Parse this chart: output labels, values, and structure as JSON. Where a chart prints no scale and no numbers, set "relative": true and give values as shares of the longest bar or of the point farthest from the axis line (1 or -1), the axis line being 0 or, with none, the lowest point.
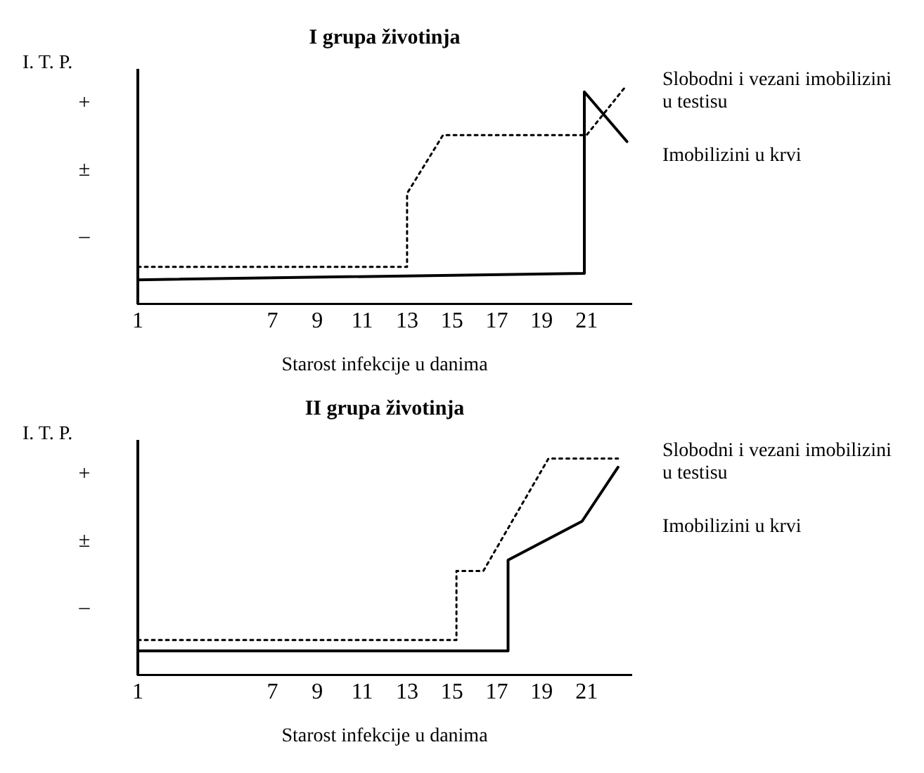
{
  "chart_data": [
    {
      "type": "line",
      "title": "I grupa životinja",
      "xlabel": "Starost infekcije u danima",
      "ylabel": "I. T. P.",
      "xlim": [
        1,
        23
      ],
      "xticks": [
        1,
        7,
        9,
        11,
        13,
        15,
        17,
        19,
        21
      ],
      "relative": true,
      "annotations": [
        "–",
        "±",
        "+"
      ],
      "grid": false,
      "legend": false,
      "marker": "none",
      "series": [
        {
          "name": "Slobodni i vezani imobilizini u testisu",
          "color": "#000000",
          "line_style": "dotted",
          "x": [
            1,
            13,
            13,
            14.6,
            21,
            22.7
          ],
          "values": [
            0.17,
            0.17,
            0.51,
            0.78,
            0.78,
            1
          ]
        },
        {
          "name": "Imobilizini u krvi",
          "color": "#000000",
          "line_style": "solid",
          "x": [
            1,
            20.9,
            20.9,
            22.8
          ],
          "values": [
            0.11,
            0.14,
            0.98,
            0.75
          ]
        }
      ]
    },
    {
      "type": "line",
      "title": "II grupa životinja",
      "xlabel": "Starost infekcije u danima",
      "ylabel": "I. T. P.",
      "xlim": [
        1,
        23
      ],
      "xticks": [
        1,
        7,
        9,
        11,
        13,
        15,
        17,
        19,
        21
      ],
      "relative": true,
      "annotations": [
        "–",
        "±",
        "+"
      ],
      "grid": false,
      "legend": false,
      "marker": "none",
      "series": [
        {
          "name": "Slobodni i vezani imobilizini u testisu",
          "color": "#000000",
          "line_style": "dotted",
          "x": [
            1,
            15.2,
            15.2,
            16.4,
            19.3,
            22.4
          ],
          "values": [
            0.16,
            0.16,
            0.48,
            0.48,
            1,
            1
          ]
        },
        {
          "name": "Imobilizini u krvi",
          "color": "#000000",
          "line_style": "solid",
          "x": [
            1,
            17.5,
            17.5,
            20.8,
            22.4
          ],
          "values": [
            0.11,
            0.11,
            0.53,
            0.71,
            0.96
          ]
        }
      ]
    }
  ]
}
